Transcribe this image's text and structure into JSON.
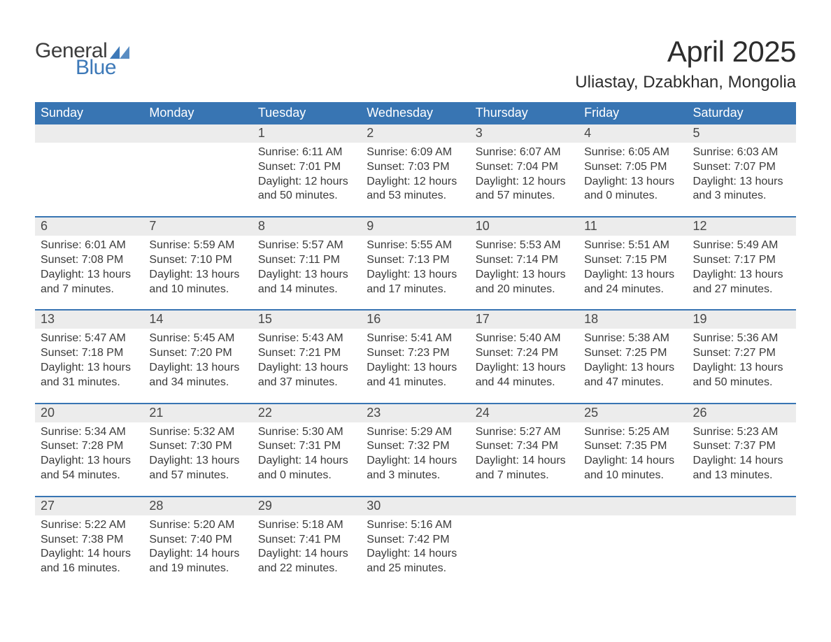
{
  "brand": {
    "general": "General",
    "blue": "Blue",
    "triangle_color": "#3d79b8"
  },
  "title": "April 2025",
  "location": "Uliastay, Dzabkhan, Mongolia",
  "colors": {
    "header_bg": "#3875b3",
    "header_text": "#ffffff",
    "daynum_bg": "#ececec",
    "week_border": "#3875b3",
    "body_text": "#3a3a3a"
  },
  "weekdays": [
    "Sunday",
    "Monday",
    "Tuesday",
    "Wednesday",
    "Thursday",
    "Friday",
    "Saturday"
  ],
  "weeks": [
    [
      {
        "num": "",
        "sunrise": "",
        "sunset": "",
        "daylight1": "",
        "daylight2": ""
      },
      {
        "num": "",
        "sunrise": "",
        "sunset": "",
        "daylight1": "",
        "daylight2": ""
      },
      {
        "num": "1",
        "sunrise": "Sunrise: 6:11 AM",
        "sunset": "Sunset: 7:01 PM",
        "daylight1": "Daylight: 12 hours",
        "daylight2": "and 50 minutes."
      },
      {
        "num": "2",
        "sunrise": "Sunrise: 6:09 AM",
        "sunset": "Sunset: 7:03 PM",
        "daylight1": "Daylight: 12 hours",
        "daylight2": "and 53 minutes."
      },
      {
        "num": "3",
        "sunrise": "Sunrise: 6:07 AM",
        "sunset": "Sunset: 7:04 PM",
        "daylight1": "Daylight: 12 hours",
        "daylight2": "and 57 minutes."
      },
      {
        "num": "4",
        "sunrise": "Sunrise: 6:05 AM",
        "sunset": "Sunset: 7:05 PM",
        "daylight1": "Daylight: 13 hours",
        "daylight2": "and 0 minutes."
      },
      {
        "num": "5",
        "sunrise": "Sunrise: 6:03 AM",
        "sunset": "Sunset: 7:07 PM",
        "daylight1": "Daylight: 13 hours",
        "daylight2": "and 3 minutes."
      }
    ],
    [
      {
        "num": "6",
        "sunrise": "Sunrise: 6:01 AM",
        "sunset": "Sunset: 7:08 PM",
        "daylight1": "Daylight: 13 hours",
        "daylight2": "and 7 minutes."
      },
      {
        "num": "7",
        "sunrise": "Sunrise: 5:59 AM",
        "sunset": "Sunset: 7:10 PM",
        "daylight1": "Daylight: 13 hours",
        "daylight2": "and 10 minutes."
      },
      {
        "num": "8",
        "sunrise": "Sunrise: 5:57 AM",
        "sunset": "Sunset: 7:11 PM",
        "daylight1": "Daylight: 13 hours",
        "daylight2": "and 14 minutes."
      },
      {
        "num": "9",
        "sunrise": "Sunrise: 5:55 AM",
        "sunset": "Sunset: 7:13 PM",
        "daylight1": "Daylight: 13 hours",
        "daylight2": "and 17 minutes."
      },
      {
        "num": "10",
        "sunrise": "Sunrise: 5:53 AM",
        "sunset": "Sunset: 7:14 PM",
        "daylight1": "Daylight: 13 hours",
        "daylight2": "and 20 minutes."
      },
      {
        "num": "11",
        "sunrise": "Sunrise: 5:51 AM",
        "sunset": "Sunset: 7:15 PM",
        "daylight1": "Daylight: 13 hours",
        "daylight2": "and 24 minutes."
      },
      {
        "num": "12",
        "sunrise": "Sunrise: 5:49 AM",
        "sunset": "Sunset: 7:17 PM",
        "daylight1": "Daylight: 13 hours",
        "daylight2": "and 27 minutes."
      }
    ],
    [
      {
        "num": "13",
        "sunrise": "Sunrise: 5:47 AM",
        "sunset": "Sunset: 7:18 PM",
        "daylight1": "Daylight: 13 hours",
        "daylight2": "and 31 minutes."
      },
      {
        "num": "14",
        "sunrise": "Sunrise: 5:45 AM",
        "sunset": "Sunset: 7:20 PM",
        "daylight1": "Daylight: 13 hours",
        "daylight2": "and 34 minutes."
      },
      {
        "num": "15",
        "sunrise": "Sunrise: 5:43 AM",
        "sunset": "Sunset: 7:21 PM",
        "daylight1": "Daylight: 13 hours",
        "daylight2": "and 37 minutes."
      },
      {
        "num": "16",
        "sunrise": "Sunrise: 5:41 AM",
        "sunset": "Sunset: 7:23 PM",
        "daylight1": "Daylight: 13 hours",
        "daylight2": "and 41 minutes."
      },
      {
        "num": "17",
        "sunrise": "Sunrise: 5:40 AM",
        "sunset": "Sunset: 7:24 PM",
        "daylight1": "Daylight: 13 hours",
        "daylight2": "and 44 minutes."
      },
      {
        "num": "18",
        "sunrise": "Sunrise: 5:38 AM",
        "sunset": "Sunset: 7:25 PM",
        "daylight1": "Daylight: 13 hours",
        "daylight2": "and 47 minutes."
      },
      {
        "num": "19",
        "sunrise": "Sunrise: 5:36 AM",
        "sunset": "Sunset: 7:27 PM",
        "daylight1": "Daylight: 13 hours",
        "daylight2": "and 50 minutes."
      }
    ],
    [
      {
        "num": "20",
        "sunrise": "Sunrise: 5:34 AM",
        "sunset": "Sunset: 7:28 PM",
        "daylight1": "Daylight: 13 hours",
        "daylight2": "and 54 minutes."
      },
      {
        "num": "21",
        "sunrise": "Sunrise: 5:32 AM",
        "sunset": "Sunset: 7:30 PM",
        "daylight1": "Daylight: 13 hours",
        "daylight2": "and 57 minutes."
      },
      {
        "num": "22",
        "sunrise": "Sunrise: 5:30 AM",
        "sunset": "Sunset: 7:31 PM",
        "daylight1": "Daylight: 14 hours",
        "daylight2": "and 0 minutes."
      },
      {
        "num": "23",
        "sunrise": "Sunrise: 5:29 AM",
        "sunset": "Sunset: 7:32 PM",
        "daylight1": "Daylight: 14 hours",
        "daylight2": "and 3 minutes."
      },
      {
        "num": "24",
        "sunrise": "Sunrise: 5:27 AM",
        "sunset": "Sunset: 7:34 PM",
        "daylight1": "Daylight: 14 hours",
        "daylight2": "and 7 minutes."
      },
      {
        "num": "25",
        "sunrise": "Sunrise: 5:25 AM",
        "sunset": "Sunset: 7:35 PM",
        "daylight1": "Daylight: 14 hours",
        "daylight2": "and 10 minutes."
      },
      {
        "num": "26",
        "sunrise": "Sunrise: 5:23 AM",
        "sunset": "Sunset: 7:37 PM",
        "daylight1": "Daylight: 14 hours",
        "daylight2": "and 13 minutes."
      }
    ],
    [
      {
        "num": "27",
        "sunrise": "Sunrise: 5:22 AM",
        "sunset": "Sunset: 7:38 PM",
        "daylight1": "Daylight: 14 hours",
        "daylight2": "and 16 minutes."
      },
      {
        "num": "28",
        "sunrise": "Sunrise: 5:20 AM",
        "sunset": "Sunset: 7:40 PM",
        "daylight1": "Daylight: 14 hours",
        "daylight2": "and 19 minutes."
      },
      {
        "num": "29",
        "sunrise": "Sunrise: 5:18 AM",
        "sunset": "Sunset: 7:41 PM",
        "daylight1": "Daylight: 14 hours",
        "daylight2": "and 22 minutes."
      },
      {
        "num": "30",
        "sunrise": "Sunrise: 5:16 AM",
        "sunset": "Sunset: 7:42 PM",
        "daylight1": "Daylight: 14 hours",
        "daylight2": "and 25 minutes."
      },
      {
        "num": "",
        "sunrise": "",
        "sunset": "",
        "daylight1": "",
        "daylight2": ""
      },
      {
        "num": "",
        "sunrise": "",
        "sunset": "",
        "daylight1": "",
        "daylight2": ""
      },
      {
        "num": "",
        "sunrise": "",
        "sunset": "",
        "daylight1": "",
        "daylight2": ""
      }
    ]
  ]
}
